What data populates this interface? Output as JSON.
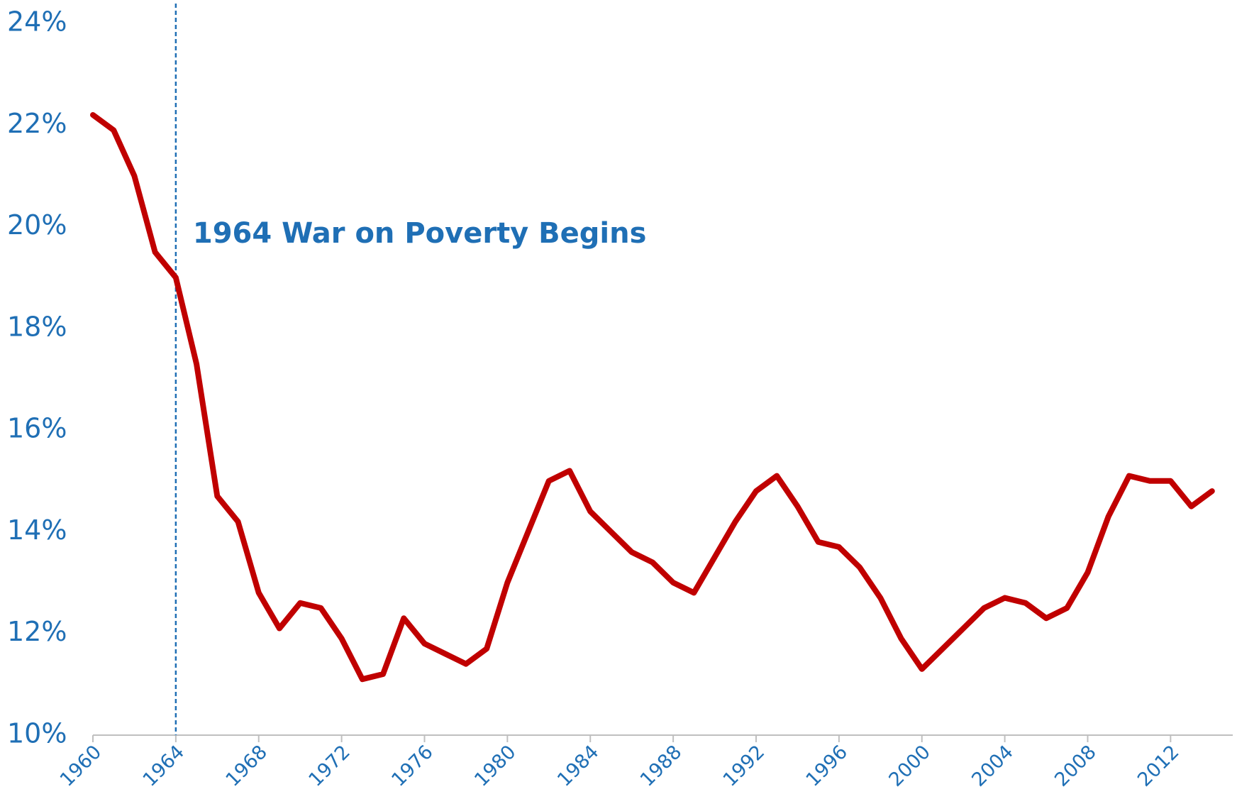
{
  "chart_data": {
    "type": "line",
    "x": [
      1960,
      1961,
      1962,
      1963,
      1964,
      1965,
      1966,
      1967,
      1968,
      1969,
      1970,
      1971,
      1972,
      1973,
      1974,
      1975,
      1976,
      1977,
      1978,
      1979,
      1980,
      1981,
      1982,
      1983,
      1984,
      1985,
      1986,
      1987,
      1988,
      1989,
      1990,
      1991,
      1992,
      1993,
      1994,
      1995,
      1996,
      1997,
      1998,
      1999,
      2000,
      2001,
      2002,
      2003,
      2004,
      2005,
      2006,
      2007,
      2008,
      2009,
      2010,
      2011,
      2012,
      2013,
      2014
    ],
    "series": [
      {
        "color": "#c00000",
        "values": [
          22.2,
          21.9,
          21.0,
          19.5,
          19.0,
          17.3,
          14.7,
          14.2,
          12.8,
          12.1,
          12.6,
          12.5,
          11.9,
          11.1,
          11.2,
          12.3,
          11.8,
          11.6,
          11.4,
          11.7,
          13.0,
          14.0,
          15.0,
          15.2,
          14.4,
          14.0,
          13.6,
          13.4,
          13.0,
          12.8,
          13.5,
          14.2,
          14.8,
          15.1,
          14.5,
          13.8,
          13.7,
          13.3,
          12.7,
          11.9,
          11.3,
          11.7,
          12.1,
          12.5,
          12.7,
          12.6,
          12.3,
          12.5,
          13.2,
          14.3,
          15.1,
          15.0,
          15.0,
          14.5,
          14.8
        ]
      }
    ],
    "xlim": [
      1960,
      2015
    ],
    "xticks": [
      1960,
      1964,
      1968,
      1972,
      1976,
      1980,
      1984,
      1988,
      1992,
      1996,
      2000,
      2004,
      2008,
      2012
    ],
    "ylim": [
      10,
      24
    ],
    "yticks": [
      {
        "value": 10,
        "label": "10%"
      },
      {
        "value": 12,
        "label": "12%"
      },
      {
        "value": 14,
        "label": "14%"
      },
      {
        "value": 16,
        "label": "16%"
      },
      {
        "value": 18,
        "label": "18%"
      },
      {
        "value": 20,
        "label": "20%"
      },
      {
        "value": 22,
        "label": "22%"
      },
      {
        "value": 24,
        "label": "24%"
      }
    ],
    "grid": false,
    "annotations": [
      {
        "text": "1964 War on Poverty Begins",
        "x": 1964,
        "color": "#1f6fb5"
      }
    ]
  }
}
